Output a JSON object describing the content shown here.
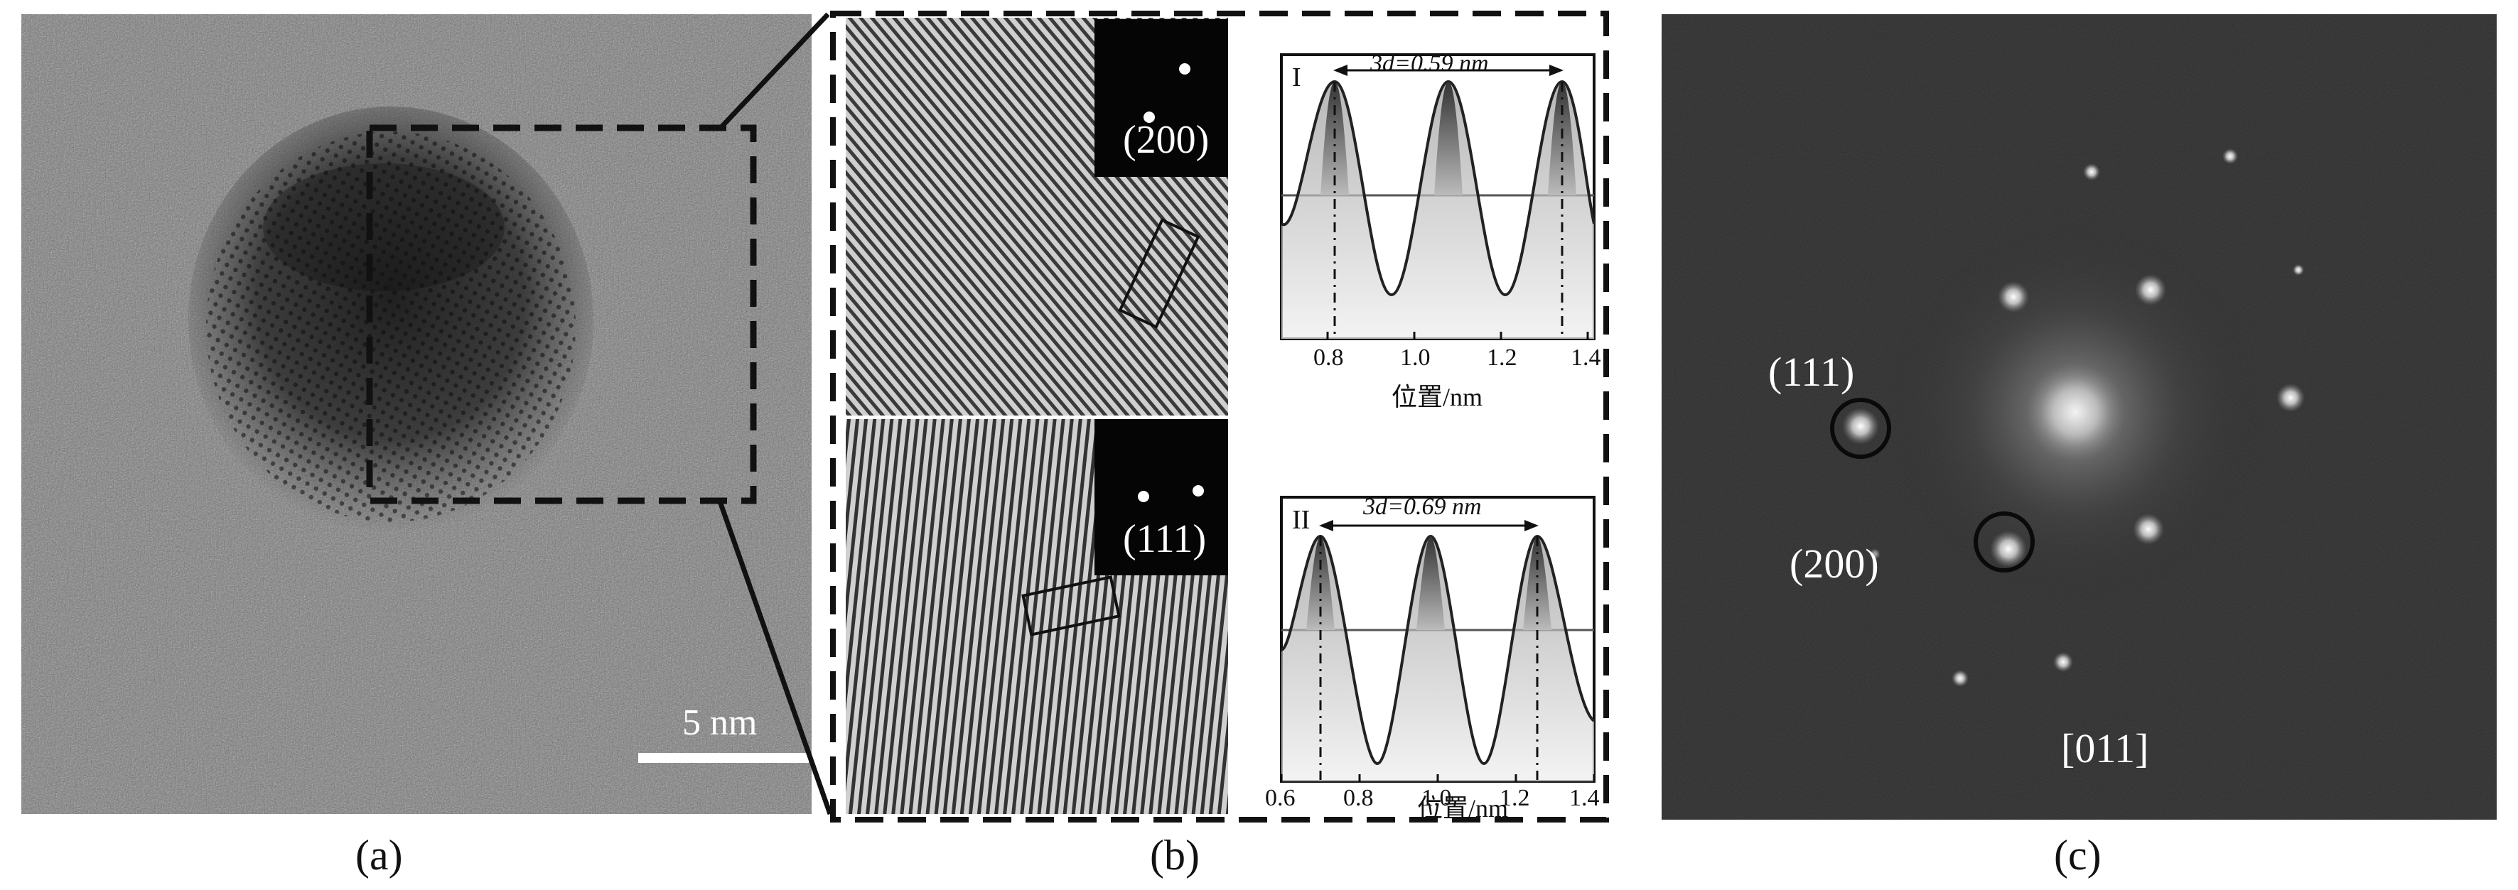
{
  "panel_a": {
    "caption": "(a)",
    "scalebar_label": "5 nm"
  },
  "panel_b": {
    "caption": "(b)",
    "top": {
      "spot_label": "(200)",
      "profile_roman": "I",
      "spacing_label": "3d=0.59 nm",
      "x_ticks": [
        "0.8",
        "1.0",
        "1.2",
        "1.4"
      ],
      "xlabel": "位置/nm"
    },
    "bottom": {
      "spot_label": "(111)",
      "profile_roman": "II",
      "spacing_label": "3d=0.69 nm",
      "x_ticks": [
        "0.6",
        "0.8",
        "1.0",
        "1.2",
        "1.4"
      ],
      "xlabel": "位置/nm"
    }
  },
  "panel_c": {
    "caption": "(c)",
    "label_111": "(111)",
    "label_200": "(200)",
    "zone_axis": "[011]"
  }
}
